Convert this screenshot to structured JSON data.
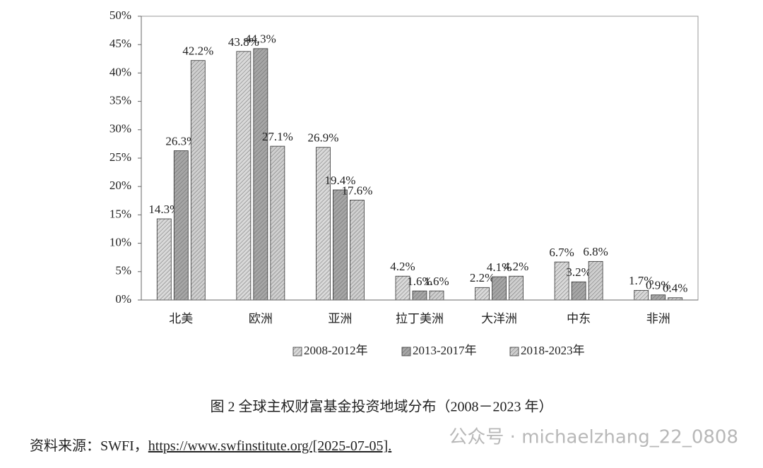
{
  "chart_data": {
    "type": "bar",
    "categories": [
      "北美",
      "欧洲",
      "亚洲",
      "拉丁美洲",
      "大洋洲",
      "中东",
      "非洲"
    ],
    "series": [
      {
        "name": "2008-2012年",
        "color": "#d9d9d9",
        "values": [
          14.3,
          43.8,
          26.9,
          4.2,
          2.2,
          6.7,
          1.7
        ],
        "value_labels": [
          "14.3%",
          "43.8%",
          "26.9%",
          "4.2%",
          "2.2%",
          "6.7%",
          "1.7%"
        ]
      },
      {
        "name": "2013-2017年",
        "color": "#a6a6a6",
        "values": [
          26.3,
          44.3,
          19.4,
          1.6,
          4.1,
          3.2,
          0.9
        ],
        "value_labels": [
          "26.3%",
          "44.3%",
          "19.4%",
          "1.6%",
          "4.1%",
          "3.2%",
          "0.9%"
        ]
      },
      {
        "name": "2018-2023年",
        "color": "#cfcfcf",
        "values": [
          42.2,
          27.1,
          17.6,
          1.6,
          4.2,
          6.8,
          0.4
        ],
        "value_labels": [
          "42.2%",
          "27.1%",
          "17.6%",
          "1.6%",
          "4.2%",
          "6.8%",
          "0.4%"
        ]
      }
    ],
    "ylim": [
      0,
      50
    ],
    "yticks": [
      {
        "value": 0,
        "label": "0%"
      },
      {
        "value": 5,
        "label": "5%"
      },
      {
        "value": 10,
        "label": "10%"
      },
      {
        "value": 15,
        "label": "15%"
      },
      {
        "value": 20,
        "label": "20%"
      },
      {
        "value": 25,
        "label": "25%"
      },
      {
        "value": 30,
        "label": "30%"
      },
      {
        "value": 35,
        "label": "35%"
      },
      {
        "value": 40,
        "label": "40%"
      },
      {
        "value": 45,
        "label": "45%"
      },
      {
        "value": 50,
        "label": "50%"
      }
    ],
    "grid": false,
    "legend": "bottom",
    "caption": "图 2 全球主权财富基金投资地域分布（2008－2023 年）"
  },
  "source_label": "资料来源：SWFI，",
  "source_url": "https://www.swfinstitute.org/[2025-07-05].",
  "watermark": "公众号 · michaelzhang_22_0808"
}
